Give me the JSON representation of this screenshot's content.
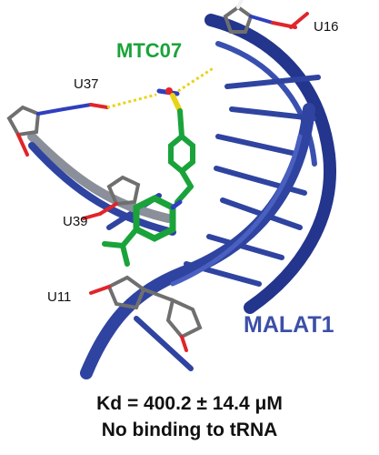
{
  "residues": {
    "u16": "U16",
    "u37": "U37",
    "u39": "U39",
    "u11": "U11"
  },
  "ligand": {
    "name": "MTC07",
    "color": "#1aa33a"
  },
  "target": {
    "name": "MALAT1",
    "color": "#3c4fa8"
  },
  "caption": {
    "kd": "Kd = 400.2 ± 14.4 μM",
    "tRNA": "No binding to tRNA"
  },
  "colors": {
    "rna_ribbon": "#2f44a0",
    "ribbon_underside": "#8a8f99",
    "hbond": "#e8d31a",
    "sugar_carbon": "#6f6f6f",
    "oxygen": "#e0252b",
    "nitrogen": "#2f3fbf",
    "hydrogen": "#f2f2f2"
  }
}
